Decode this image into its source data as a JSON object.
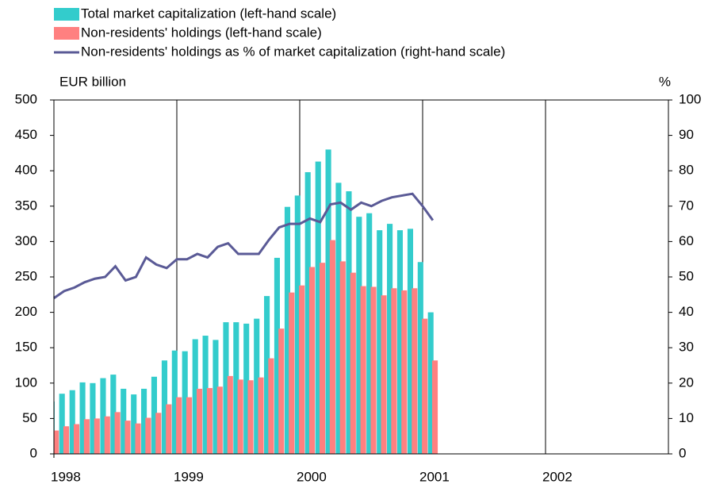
{
  "chart_data": {
    "type": "bar_line",
    "y_label": "EUR billion",
    "y2_label": "%",
    "x": [
      1998,
      1998.083,
      1998.167,
      1998.25,
      1998.333,
      1998.417,
      1998.5,
      1998.583,
      1998.667,
      1998.75,
      1998.833,
      1998.917,
      1999,
      1999.083,
      1999.167,
      1999.25,
      1999.333,
      1999.417,
      1999.5,
      1999.583,
      1999.667,
      1999.75,
      1999.833,
      1999.917,
      2000,
      2000.083,
      2000.167,
      2000.25,
      2000.333,
      2000.417,
      2000.5,
      2000.583,
      2000.667,
      2000.75,
      2000.833,
      2000.917,
      2001,
      2001.083
    ],
    "series": [
      {
        "name": "Total market capitalization (left-hand scale)",
        "color": "#33cccc",
        "type": "bar",
        "values": [
          74,
          85,
          90,
          101,
          100,
          107,
          112,
          92,
          84,
          92,
          109,
          132,
          146,
          145,
          162,
          167,
          161,
          186,
          186,
          184,
          191,
          223,
          277,
          349,
          365,
          398,
          413,
          430,
          383,
          371,
          335,
          340,
          316,
          325,
          316,
          318,
          271,
          200
        ]
      },
      {
        "name": "Non-residents' holdings (left-hand scale)",
        "color": "#ff8080",
        "type": "bar",
        "values": [
          33,
          39,
          42,
          49,
          50,
          53,
          59,
          47,
          43,
          51,
          58,
          70,
          80,
          80,
          92,
          93,
          95,
          110,
          105,
          104,
          108,
          135,
          177,
          228,
          238,
          264,
          270,
          302,
          272,
          256,
          237,
          236,
          224,
          234,
          231,
          234,
          191,
          132
        ]
      },
      {
        "name": "Non-residents' holdings as % of market capitalization (right-hand scale)",
        "color": "#5a5a96",
        "type": "line",
        "axis": "y2",
        "values": [
          44,
          46,
          47,
          48.5,
          49.5,
          50,
          53,
          49,
          50,
          55.5,
          53.5,
          52.5,
          55,
          55,
          56.5,
          55.5,
          58.5,
          59.5,
          56.5,
          56.5,
          56.5,
          60.5,
          64,
          65,
          65,
          66.5,
          65.5,
          70.5,
          71,
          69,
          71,
          70,
          71.5,
          72.5,
          73,
          73.5,
          70,
          66
        ]
      }
    ],
    "xlim": [
      1998,
      2003
    ],
    "xticks": [
      1998,
      1999,
      2000,
      2001,
      2002
    ],
    "ylim": [
      0,
      500
    ],
    "yticks": [
      0,
      50,
      100,
      150,
      200,
      250,
      300,
      350,
      400,
      450,
      500
    ],
    "y2lim": [
      0,
      100
    ],
    "y2ticks": [
      0,
      10,
      20,
      30,
      40,
      50,
      60,
      70,
      80,
      90,
      100
    ],
    "grid": "x",
    "legend": "top-left"
  }
}
